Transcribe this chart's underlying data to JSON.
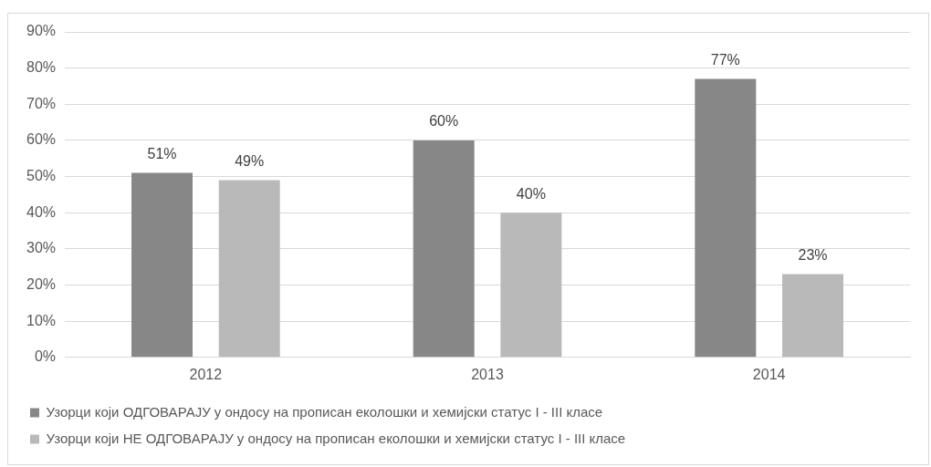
{
  "chart_data": {
    "type": "bar",
    "categories": [
      "2012",
      "2013",
      "2014"
    ],
    "series": [
      {
        "name": "Узорци који ОДГОВАРАЈУ у ондосу на прописан еколошки и хемијски статус I - III класе",
        "color": "#878787",
        "values": [
          51,
          60,
          77
        ],
        "value_labels": [
          "51%",
          "60%",
          "77%"
        ]
      },
      {
        "name": "Узорци који НЕ ОДГОВАРАЈУ у ондосу на прописан еколошки и хемијски статус I - III класе",
        "color": "#b9b9b9",
        "values": [
          49,
          40,
          23
        ],
        "value_labels": [
          "49%",
          "40%",
          "23%"
        ]
      }
    ],
    "ylim": [
      0,
      90
    ],
    "yticks": [
      {
        "value": 0,
        "label": "0%"
      },
      {
        "value": 10,
        "label": "10%"
      },
      {
        "value": 20,
        "label": "20%"
      },
      {
        "value": 30,
        "label": "30%"
      },
      {
        "value": 40,
        "label": "40%"
      },
      {
        "value": 50,
        "label": "50%"
      },
      {
        "value": 60,
        "label": "60%"
      },
      {
        "value": 70,
        "label": "70%"
      },
      {
        "value": 80,
        "label": "80%"
      },
      {
        "value": 90,
        "label": "90%"
      }
    ],
    "grid": "y",
    "legend": "bottom"
  }
}
